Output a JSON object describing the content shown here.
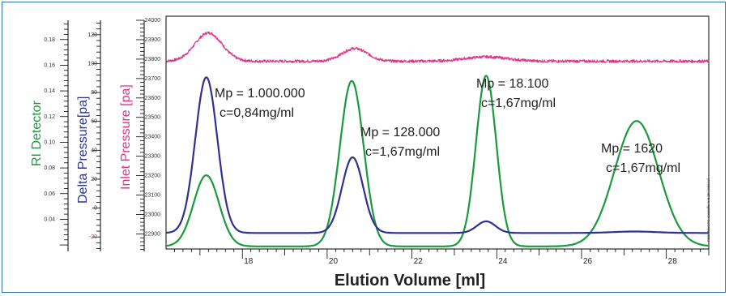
{
  "chart_data": {
    "type": "line",
    "x": {
      "label": "Elution Volume [ml]",
      "range": [
        16.2,
        29.0
      ],
      "ticks": [
        18,
        20,
        22,
        24,
        26,
        28
      ]
    },
    "axes": {
      "ri": {
        "label": "RI Detector",
        "color": "#1a9a3c",
        "range": [
          0.015,
          0.195
        ],
        "ticks": [
          0.04,
          0.06,
          0.08,
          0.1,
          0.12,
          0.14,
          0.16,
          0.18
        ],
        "tick_labels": [
          "0.04",
          "0.06",
          "0.08",
          "0.10",
          "0.12",
          "0.14",
          "0.16",
          "0.18"
        ]
      },
      "delta": {
        "label": "Delta Pressure[pa]",
        "color": "#2e3192",
        "range": [
          -30,
          130
        ],
        "ticks": [
          -20,
          0,
          20,
          40,
          60,
          80,
          100,
          120
        ],
        "tick_labels": [
          "-20",
          "0",
          "20",
          "40",
          "60",
          "80",
          "100",
          "120"
        ]
      },
      "inlet": {
        "label": "Inlet Pressure [pa]",
        "color": "#e0338c",
        "range": [
          22810,
          24000
        ],
        "ticks": [
          22900,
          23000,
          23100,
          23200,
          23300,
          23400,
          23500,
          23600,
          23700,
          23800,
          23900,
          24000
        ],
        "tick_labels": [
          "22900",
          "23000",
          "23100",
          "23200",
          "23300",
          "23400",
          "23500",
          "23600",
          "23700",
          "23800",
          "23900",
          "24000"
        ]
      }
    },
    "series": [
      {
        "axis": "inlet",
        "color": "#e0338c",
        "baseline": 23770,
        "noise": 7,
        "bumps": [
          {
            "x": 17.2,
            "height": 145,
            "width": 0.32
          },
          {
            "x": 20.65,
            "height": 65,
            "width": 0.3
          },
          {
            "x": 23.75,
            "height": 22,
            "width": 0.5
          }
        ]
      },
      {
        "axis": "ri",
        "color": "#1a9a3c",
        "baseline": 0.017,
        "peaks": [
          {
            "x": 17.15,
            "y": 0.072,
            "width": 0.3
          },
          {
            "x": 20.58,
            "y": 0.145,
            "width": 0.28
          },
          {
            "x": 23.75,
            "y": 0.149,
            "width": 0.24
          },
          {
            "x": 27.3,
            "y": 0.114,
            "width": 0.52
          }
        ]
      },
      {
        "axis": "delta",
        "color": "#2e3192",
        "baseline": -19,
        "peaks": [
          {
            "x": 17.15,
            "y": 88,
            "width": 0.26
          },
          {
            "x": 20.6,
            "y": 33,
            "width": 0.25
          },
          {
            "x": 23.75,
            "y": -11,
            "width": 0.22
          },
          {
            "x": 27.25,
            "y": -18,
            "width": 0.5
          }
        ]
      }
    ],
    "annotations": [
      {
        "line1": "Mp = 1.000.000",
        "line2": "c=0,84mg/ml"
      },
      {
        "line1": "Mp = 128.000",
        "line2": "c=1,67mg/ml"
      },
      {
        "line1": "Mp = 18.100",
        "line2": "c=1,67mg/ml"
      },
      {
        "line1": "Mp = 1620",
        "line2": "c=1,67mg/ml"
      }
    ],
    "footer_note": "PSS WinGPC scientific V 6.20 | Inlet.ef"
  }
}
